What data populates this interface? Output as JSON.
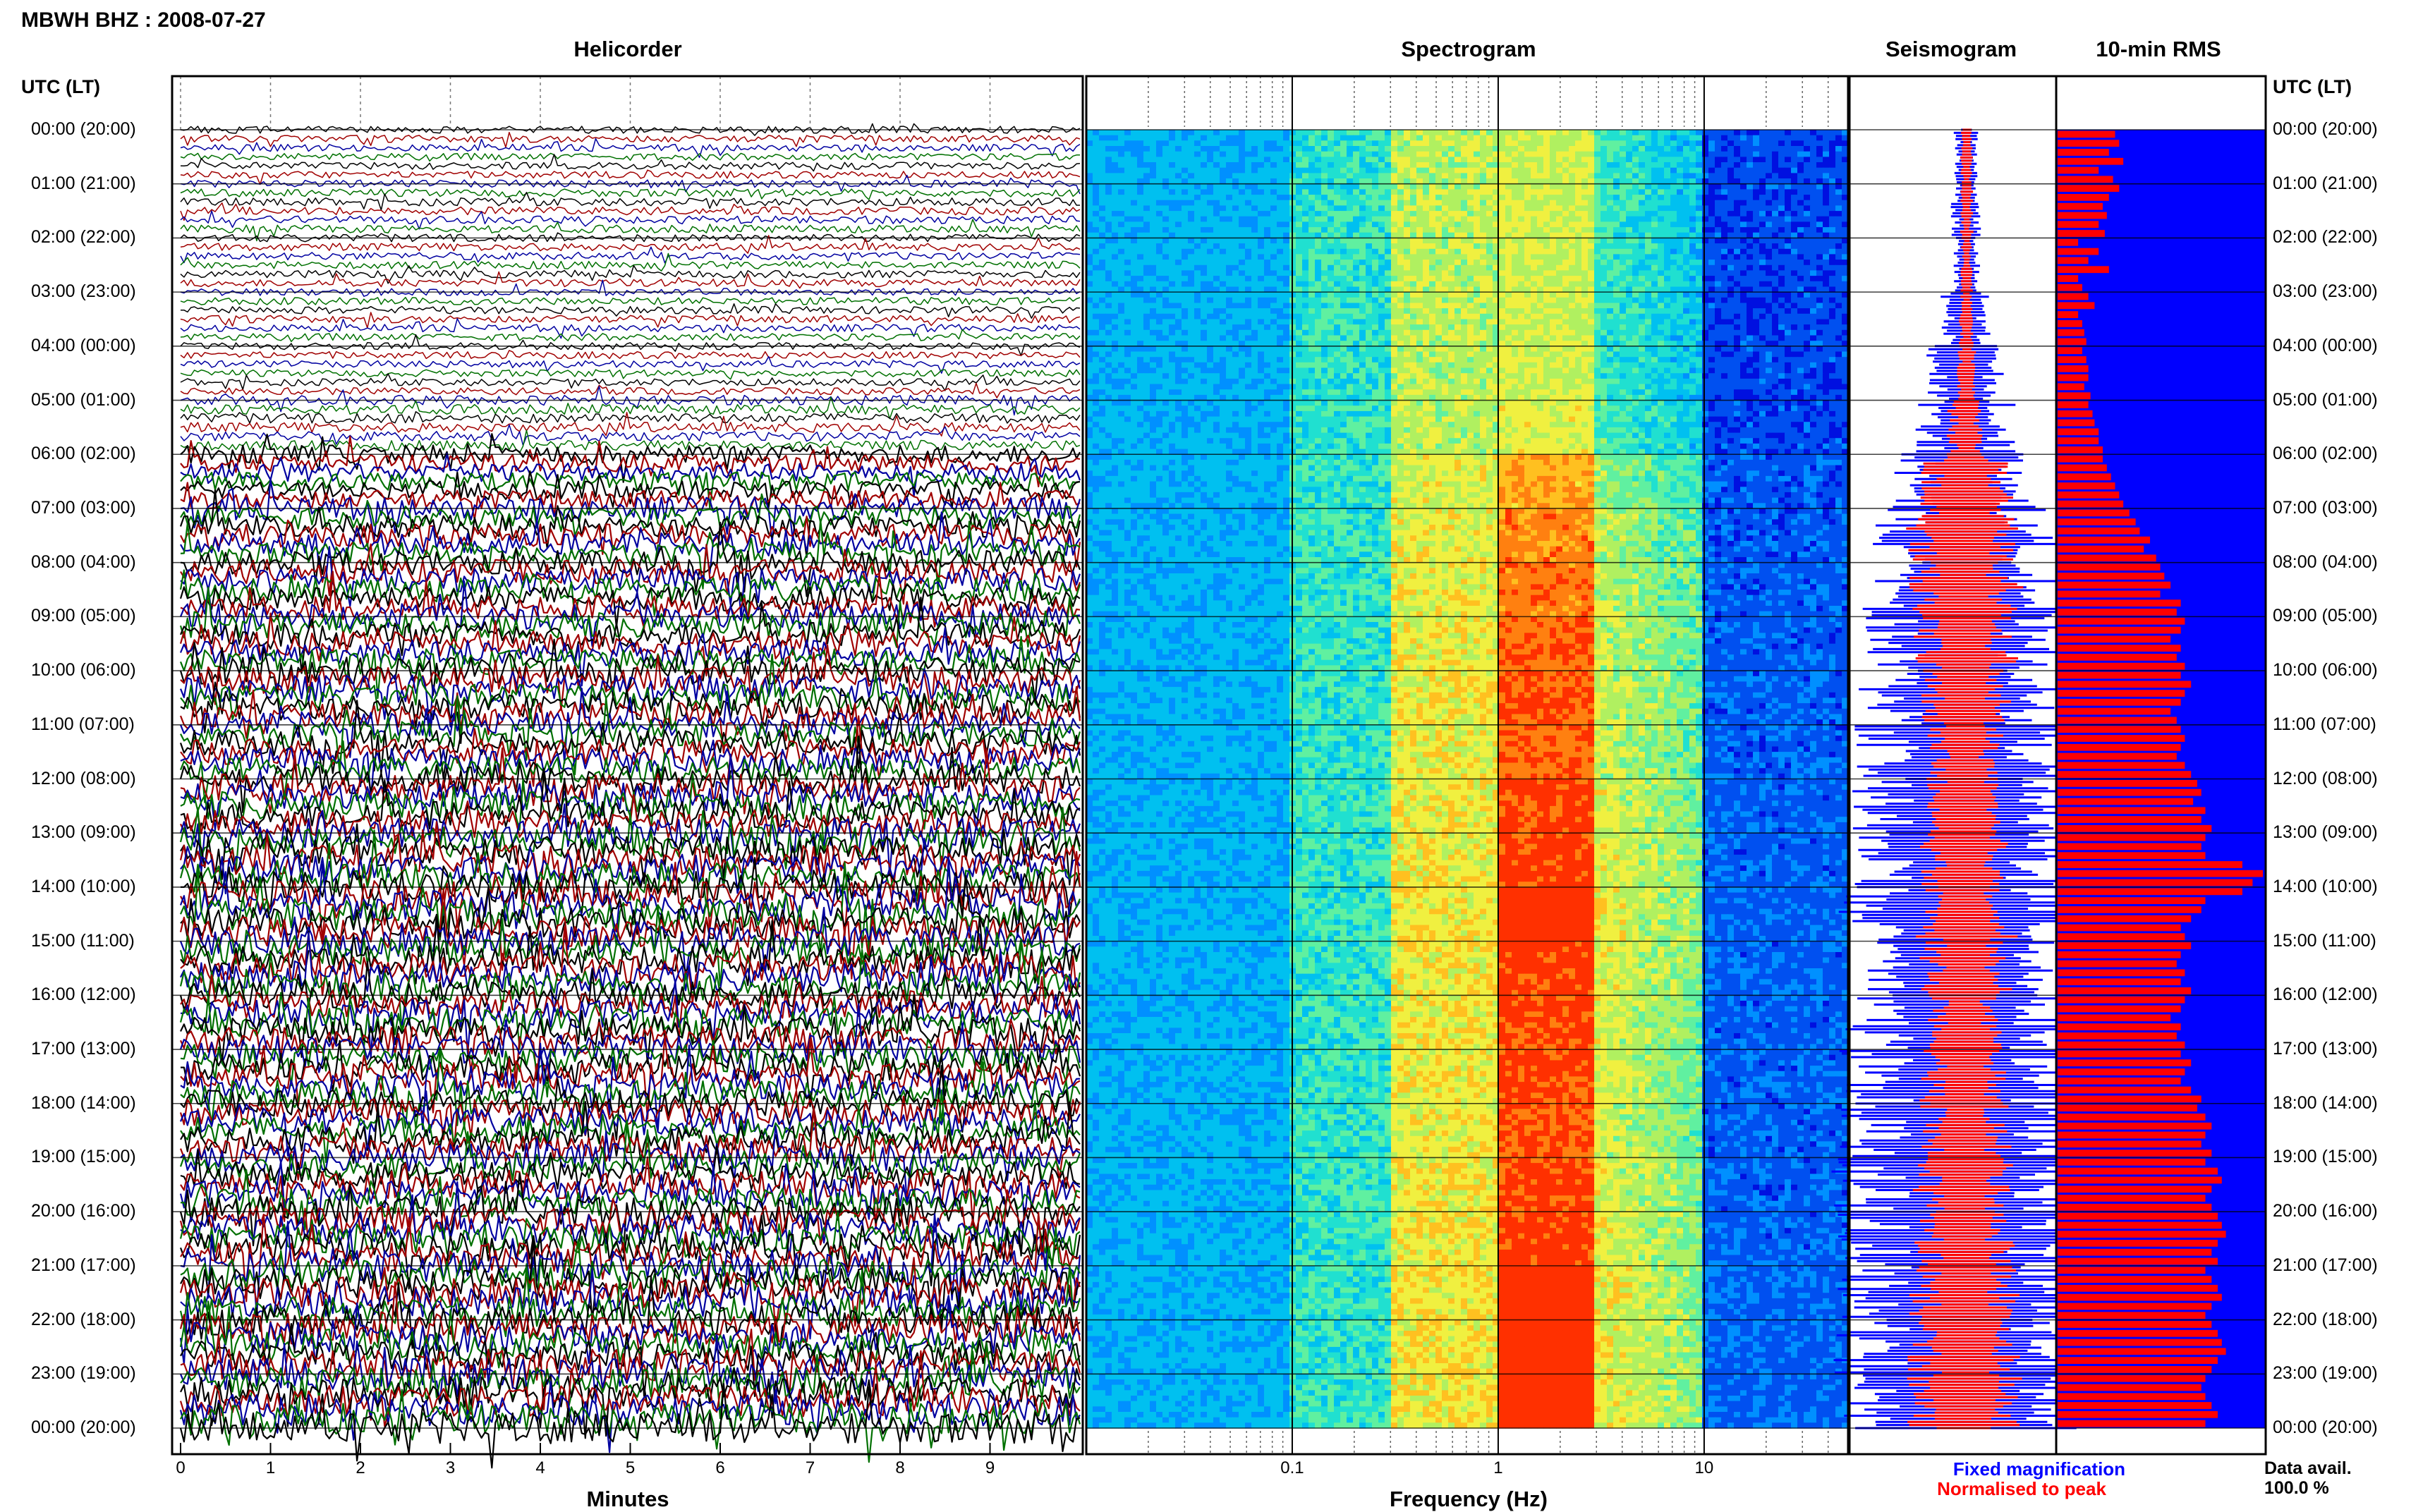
{
  "header": {
    "station_title": "MBWH BHZ : 2008-07-27",
    "utc_label_left": "UTC (LT)",
    "utc_label_right": "UTC (LT)"
  },
  "panels": {
    "helicorder": {
      "title": "Helicorder",
      "xlabel": "Minutes"
    },
    "spectrogram": {
      "title": "Spectrogram",
      "xlabel": "Frequency (Hz)"
    },
    "seismogram": {
      "title": "Seismogram"
    },
    "rms": {
      "title": "10-min RMS"
    }
  },
  "legend": {
    "fixed": "Fixed magnification",
    "normalised": "Normalised to peak",
    "data_avail_label": "Data avail.",
    "data_avail_value": "100.0 %"
  },
  "colors": {
    "trace_black": "#000000",
    "trace_red": "#a00000",
    "trace_blue": "#0000a0",
    "trace_green": "#007000",
    "fixed_blue": "#0000ff",
    "normalised_red": "#ff0000",
    "spec_low": "#0000d8",
    "spec_high": "#ff2000"
  },
  "chart_data": [
    {
      "type": "line",
      "name_panel": "Helicorder",
      "xlabel": "Minutes",
      "xticks": [
        "0",
        "1",
        "2",
        "3",
        "4",
        "5",
        "6",
        "7",
        "8",
        "9"
      ],
      "xlim": [
        0,
        10
      ],
      "yticks": [
        "00:00 (20:00)",
        "01:00 (21:00)",
        "02:00 (22:00)",
        "03:00 (23:00)",
        "04:00 (00:00)",
        "05:00 (01:00)",
        "06:00 (02:00)",
        "07:00 (03:00)",
        "08:00 (04:00)",
        "09:00 (05:00)",
        "10:00 (06:00)",
        "11:00 (07:00)",
        "12:00 (08:00)",
        "13:00 (09:00)",
        "14:00 (10:00)",
        "15:00 (11:00)",
        "16:00 (12:00)",
        "17:00 (13:00)",
        "18:00 (14:00)",
        "19:00 (15:00)",
        "20:00 (16:00)",
        "21:00 (17:00)",
        "22:00 (18:00)",
        "23:00 (19:00)",
        "00:00 (20:00)"
      ],
      "trace_color_cycle": [
        "black",
        "red",
        "blue",
        "green"
      ],
      "activity_level_by_hour": [
        0.15,
        0.18,
        0.17,
        0.16,
        0.15,
        0.25,
        0.55,
        0.7,
        0.75,
        0.8,
        0.85,
        0.8,
        0.9,
        0.95,
        1.0,
        0.95,
        0.9,
        0.9,
        0.85,
        0.9,
        0.95,
        1.0,
        1.0,
        1.0
      ]
    },
    {
      "type": "heatmap",
      "name_panel": "Spectrogram",
      "xlabel": "Frequency (Hz)",
      "xscale": "log",
      "xlim": [
        0.01,
        50
      ],
      "xticks": [
        "0.1",
        "1",
        "10"
      ],
      "peak_band_hz": [
        1.0,
        3.0
      ],
      "active_band_hz": [
        0.3,
        10
      ]
    },
    {
      "type": "area",
      "name_panel": "Seismogram",
      "series": [
        {
          "name": "Fixed magnification",
          "amplitude_by_hour": [
            0.1,
            0.12,
            0.1,
            0.2,
            0.3,
            0.4,
            0.55,
            0.7,
            0.8,
            0.75,
            0.8,
            0.85,
            0.85,
            0.9,
            0.95,
            0.9,
            0.9,
            0.95,
            0.95,
            1.0,
            1.0,
            1.0,
            1.0,
            1.0
          ]
        },
        {
          "name": "Normalised to peak",
          "amplitude_by_hour": [
            0.05,
            0.05,
            0.05,
            0.06,
            0.08,
            0.15,
            0.35,
            0.45,
            0.45,
            0.4,
            0.35,
            0.3,
            0.3,
            0.35,
            0.4,
            0.35,
            0.3,
            0.35,
            0.35,
            0.4,
            0.4,
            0.45,
            0.45,
            0.45
          ]
        }
      ]
    },
    {
      "type": "bar",
      "name_panel": "10-min RMS",
      "orientation": "horizontal",
      "rms_relative": [
        0.28,
        0.3,
        0.25,
        0.32,
        0.2,
        0.27,
        0.3,
        0.25,
        0.22,
        0.24,
        0.2,
        0.23,
        0.1,
        0.2,
        0.15,
        0.25,
        0.1,
        0.12,
        0.15,
        0.18,
        0.1,
        0.12,
        0.13,
        0.14,
        0.12,
        0.14,
        0.15,
        0.15,
        0.13,
        0.16,
        0.15,
        0.17,
        0.18,
        0.2,
        0.2,
        0.22,
        0.22,
        0.24,
        0.26,
        0.28,
        0.3,
        0.32,
        0.35,
        0.38,
        0.4,
        0.45,
        0.42,
        0.48,
        0.5,
        0.52,
        0.55,
        0.5,
        0.6,
        0.58,
        0.62,
        0.6,
        0.55,
        0.6,
        0.58,
        0.62,
        0.6,
        0.65,
        0.62,
        0.6,
        0.55,
        0.58,
        0.6,
        0.62,
        0.6,
        0.58,
        0.62,
        0.65,
        0.68,
        0.7,
        0.66,
        0.72,
        0.7,
        0.75,
        0.72,
        0.7,
        0.72,
        0.9,
        1.0,
        0.95,
        0.9,
        0.72,
        0.7,
        0.65,
        0.6,
        0.62,
        0.65,
        0.6,
        0.58,
        0.62,
        0.6,
        0.65,
        0.62,
        0.6,
        0.55,
        0.6,
        0.58,
        0.62,
        0.6,
        0.65,
        0.62,
        0.6,
        0.65,
        0.7,
        0.68,
        0.72,
        0.75,
        0.72,
        0.7,
        0.75,
        0.72,
        0.78,
        0.8,
        0.75,
        0.72,
        0.75,
        0.78,
        0.8,
        0.82,
        0.78,
        0.75,
        0.78,
        0.72,
        0.75,
        0.78,
        0.8,
        0.75,
        0.72,
        0.75,
        0.78,
        0.8,
        0.82,
        0.78,
        0.75,
        0.72,
        0.7,
        0.72,
        0.75,
        0.78,
        0.72
      ]
    }
  ]
}
